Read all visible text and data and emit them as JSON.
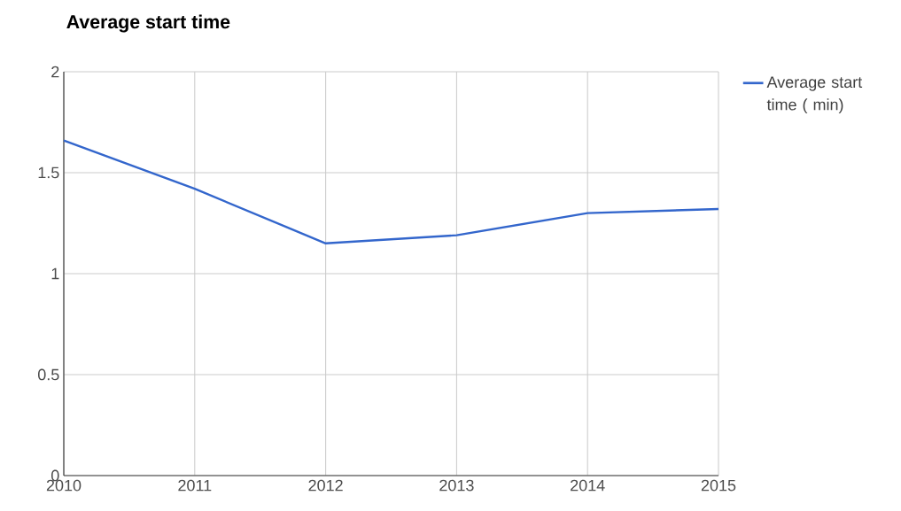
{
  "chart_data": {
    "type": "line",
    "title": "Average start time",
    "x": [
      2010,
      2011,
      2012,
      2013,
      2014,
      2015
    ],
    "series": [
      {
        "name": "Average start time ( min)",
        "color": "#3366cc",
        "values": [
          1.66,
          1.42,
          1.15,
          1.19,
          1.3,
          1.32
        ]
      }
    ],
    "xlim": [
      2010,
      2015
    ],
    "xticks": [
      2010,
      2011,
      2012,
      2013,
      2014,
      2015
    ],
    "ylim": [
      0,
      2
    ],
    "yticks": [
      0,
      0.5,
      1,
      1.5,
      2
    ],
    "grid": true,
    "legend": "right",
    "marker": "none",
    "line_style": "solid"
  }
}
